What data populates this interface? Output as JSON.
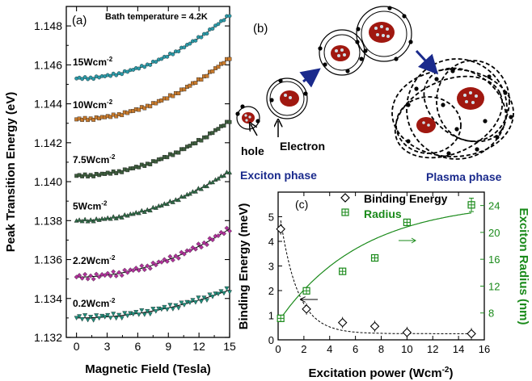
{
  "chart_data": [
    {
      "panel": "(a)",
      "type": "scatter",
      "annotation": "Bath temperature  = 4.2K",
      "xlabel": "Magnetic Field (Tesla)",
      "ylabel": "Peak Transition Energy (eV)",
      "xlim": [
        -1,
        15
      ],
      "ylim": [
        1.132,
        1.149
      ],
      "xticks": [
        "0",
        "3",
        "6",
        "9",
        "12",
        "15"
      ],
      "yticks": [
        "1.132",
        "1.134",
        "1.136",
        "1.138",
        "1.140",
        "1.142",
        "1.144",
        "1.146",
        "1.148"
      ],
      "series": [
        {
          "name": "15Wcm",
          "name_exp": "-2",
          "color": "#2a9aa8",
          "marker": "circle",
          "E0": 1.1453,
          "c": 1.45e-05
        },
        {
          "name": "10Wcm",
          "name_exp": "-2",
          "color": "#c87a2c",
          "marker": "square",
          "E0": 1.1432,
          "c": 1.4e-05
        },
        {
          "name": "7.5Wcm",
          "name_exp": "-2",
          "color": "#3c5c3c",
          "marker": "square",
          "E0": 1.1403,
          "c": 1.25e-05
        },
        {
          "name": "5Wcm",
          "name_exp": "-2",
          "color": "#2e6a46",
          "marker": "triangle",
          "E0": 1.138,
          "c": 1.12e-05
        },
        {
          "name": "2.2Wcm",
          "name_exp": "-2",
          "color": "#b0309a",
          "marker": "diamond",
          "E0": 1.1351,
          "c": 1.1e-05
        },
        {
          "name": "0.2Wcm",
          "name_exp": "-2",
          "color": "#1f8f7c",
          "marker": "triangle-down",
          "E0": 1.133,
          "c": 6.4e-06
        }
      ]
    },
    {
      "panel": "(c)",
      "type": "scatter",
      "xlabel": "Excitation power (Wcm",
      "xlabel_exp": "-2",
      "xlabel_end": ")",
      "ylabel": "Binding Energy (meV)",
      "y2label": "Exciton Radius (nm)",
      "xlim": [
        0,
        16
      ],
      "ylim": [
        0,
        6
      ],
      "y2lim": [
        4,
        26
      ],
      "xticks": [
        "0",
        "2",
        "4",
        "6",
        "8",
        "10",
        "12",
        "14",
        "16"
      ],
      "yticks": [
        "0",
        "1",
        "2",
        "3",
        "4",
        "5"
      ],
      "y2ticks": [
        "8",
        "12",
        "16",
        "20",
        "24"
      ],
      "x": [
        0.2,
        2.2,
        5,
        7.5,
        10,
        15
      ],
      "series": [
        {
          "name": "Binding Energy",
          "axis": "left",
          "color": "#000000",
          "marker": "diamond",
          "values": [
            4.5,
            1.25,
            0.7,
            0.55,
            0.3,
            0.25
          ]
        },
        {
          "name": "Radius",
          "axis": "right",
          "color": "#1a8a1a",
          "marker": "square-cross",
          "values": [
            7.2,
            11.3,
            14.2,
            16.2,
            21.5,
            24.1
          ],
          "error_last": 1.0
        }
      ]
    }
  ],
  "schematic": {
    "panel": "(b)",
    "labels": {
      "hole": "hole",
      "electron": "Electron",
      "exciton_phase": "Exciton phase",
      "plasma_phase": "Plasma phase"
    },
    "colors": {
      "nucleus": "#a01810",
      "phase_label": "#1a2a8c",
      "arrow": "#1a2a8c"
    }
  }
}
